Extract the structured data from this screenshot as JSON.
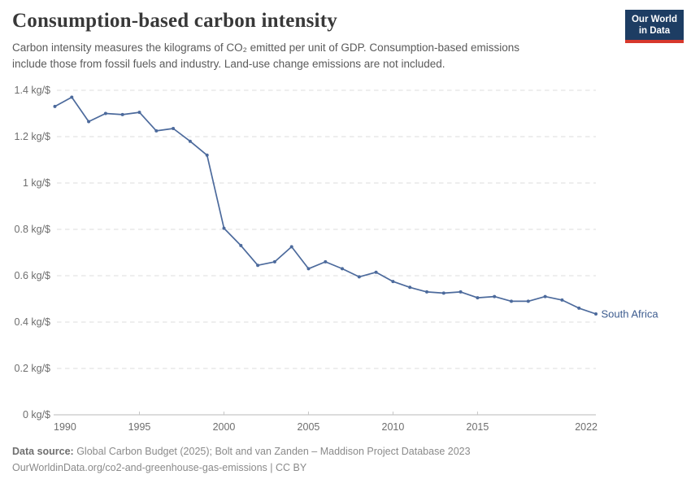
{
  "header": {
    "title": "Consumption-based carbon intensity",
    "subtitle_line1": "Carbon intensity measures the kilograms of CO₂ emitted per unit of GDP. Consumption-based emissions",
    "subtitle_line2": "include those from fossil fuels and industry. Land-use change emissions are not included.",
    "logo": {
      "line1": "Our World",
      "line2": "in Data",
      "bg_color": "#1d3d63",
      "accent_color": "#d7382c"
    }
  },
  "chart_data": {
    "type": "line",
    "title": "Consumption-based carbon intensity",
    "unit": "kg/$",
    "grid": "horizontal-dashed",
    "legend_position": "end-of-line-label",
    "ylim": [
      0,
      1.4
    ],
    "x": [
      1990,
      1991,
      1992,
      1993,
      1994,
      1995,
      1996,
      1997,
      1998,
      1999,
      2000,
      2001,
      2002,
      2003,
      2004,
      2005,
      2006,
      2007,
      2008,
      2009,
      2010,
      2011,
      2012,
      2013,
      2014,
      2015,
      2016,
      2017,
      2018,
      2019,
      2020,
      2021,
      2022
    ],
    "series": [
      {
        "name": "South Africa",
        "color": "#4C6A9C",
        "label_color": "#3d5c8f",
        "values": [
          1.33,
          1.37,
          1.265,
          1.3,
          1.295,
          1.305,
          1.225,
          1.235,
          1.18,
          1.12,
          0.805,
          0.73,
          0.645,
          0.66,
          0.725,
          0.63,
          0.66,
          0.63,
          0.595,
          0.615,
          0.575,
          0.55,
          0.53,
          0.525,
          0.53,
          0.505,
          0.51,
          0.49,
          0.49,
          0.51,
          0.495,
          0.46,
          0.435
        ]
      }
    ],
    "yticks": [
      {
        "value": 0,
        "label": "0 kg/$"
      },
      {
        "value": 0.2,
        "label": "0.2 kg/$"
      },
      {
        "value": 0.4,
        "label": "0.4 kg/$"
      },
      {
        "value": 0.6,
        "label": "0.6 kg/$"
      },
      {
        "value": 0.8,
        "label": "0.8 kg/$"
      },
      {
        "value": 1,
        "label": "1 kg/$"
      },
      {
        "value": 1.2,
        "label": "1.2 kg/$"
      },
      {
        "value": 1.4,
        "label": "1.4 kg/$"
      }
    ],
    "xticks": [
      {
        "value": 1990,
        "label": "1990",
        "align": "start"
      },
      {
        "value": 1995,
        "label": "1995",
        "align": "middle"
      },
      {
        "value": 2000,
        "label": "2000",
        "align": "middle"
      },
      {
        "value": 2005,
        "label": "2005",
        "align": "middle"
      },
      {
        "value": 2010,
        "label": "2010",
        "align": "middle"
      },
      {
        "value": 2015,
        "label": "2015",
        "align": "middle"
      },
      {
        "value": 2022,
        "label": "2022",
        "align": "end"
      }
    ]
  },
  "footer": {
    "source_label": "Data source:",
    "source_text": " Global Carbon Budget (2025); Bolt and van Zanden – Maddison Project Database 2023",
    "link_text": "OurWorldinData.org/co2-and-greenhouse-gas-emissions",
    "separator": " | ",
    "license_text": "CC BY"
  }
}
